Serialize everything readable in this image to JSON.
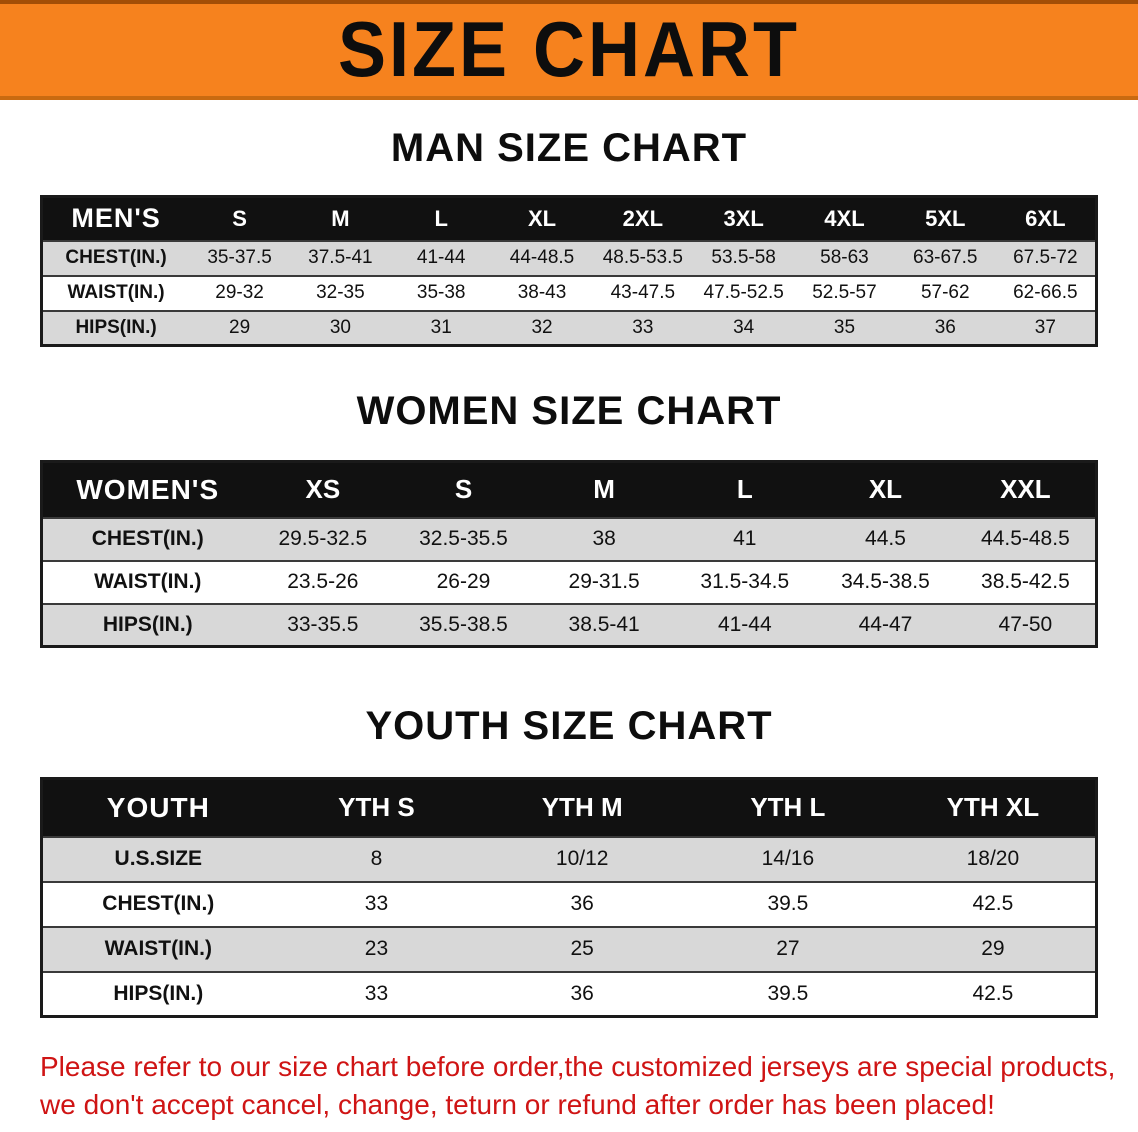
{
  "banner": {
    "title": "SIZE CHART",
    "bg_color": "#f6821e"
  },
  "colors": {
    "header_bar": "#111111",
    "row_gray": "#d8d8d8",
    "row_white": "#ffffff",
    "notice_red": "#cf1414"
  },
  "men_section": {
    "heading": "MAN SIZE CHART",
    "table": {
      "corner": "MEN'S",
      "sizes": [
        "S",
        "M",
        "L",
        "XL",
        "2XL",
        "3XL",
        "4XL",
        "5XL",
        "6XL"
      ],
      "rows": [
        {
          "label": "CHEST(IN.)",
          "values": [
            "35-37.5",
            "37.5-41",
            "41-44",
            "44-48.5",
            "48.5-53.5",
            "53.5-58",
            "58-63",
            "63-67.5",
            "67.5-72"
          ]
        },
        {
          "label": "WAIST(IN.)",
          "values": [
            "29-32",
            "32-35",
            "35-38",
            "38-43",
            "43-47.5",
            "47.5-52.5",
            "52.5-57",
            "57-62",
            "62-66.5"
          ]
        },
        {
          "label": "HIPS(IN.)",
          "values": [
            "29",
            "30",
            "31",
            "32",
            "33",
            "34",
            "35",
            "36",
            "37"
          ]
        }
      ]
    }
  },
  "women_section": {
    "heading": "WOMEN SIZE CHART",
    "table": {
      "corner": "WOMEN'S",
      "sizes": [
        "XS",
        "S",
        "M",
        "L",
        "XL",
        "XXL"
      ],
      "rows": [
        {
          "label": "CHEST(IN.)",
          "values": [
            "29.5-32.5",
            "32.5-35.5",
            "38",
            "41",
            "44.5",
            "44.5-48.5"
          ]
        },
        {
          "label": "WAIST(IN.)",
          "values": [
            "23.5-26",
            "26-29",
            "29-31.5",
            "31.5-34.5",
            "34.5-38.5",
            "38.5-42.5"
          ]
        },
        {
          "label": "HIPS(IN.)",
          "values": [
            "33-35.5",
            "35.5-38.5",
            "38.5-41",
            "41-44",
            "44-47",
            "47-50"
          ]
        }
      ]
    }
  },
  "youth_section": {
    "heading": "YOUTH SIZE CHART",
    "table": {
      "corner": "YOUTH",
      "sizes": [
        "YTH S",
        "YTH M",
        "YTH L",
        "YTH XL"
      ],
      "rows": [
        {
          "label": "U.S.SIZE",
          "values": [
            "8",
            "10/12",
            "14/16",
            "18/20"
          ]
        },
        {
          "label": "CHEST(IN.)",
          "values": [
            "33",
            "36",
            "39.5",
            "42.5"
          ]
        },
        {
          "label": "WAIST(IN.)",
          "values": [
            "23",
            "25",
            "27",
            "29"
          ]
        },
        {
          "label": "HIPS(IN.)",
          "values": [
            "33",
            "36",
            "39.5",
            "42.5"
          ]
        }
      ]
    }
  },
  "footer": {
    "line1": "Please refer to our size chart before order,the customized jerseys are special products,",
    "line2": "we don't accept cancel, change, teturn or refund after order has been placed!"
  }
}
